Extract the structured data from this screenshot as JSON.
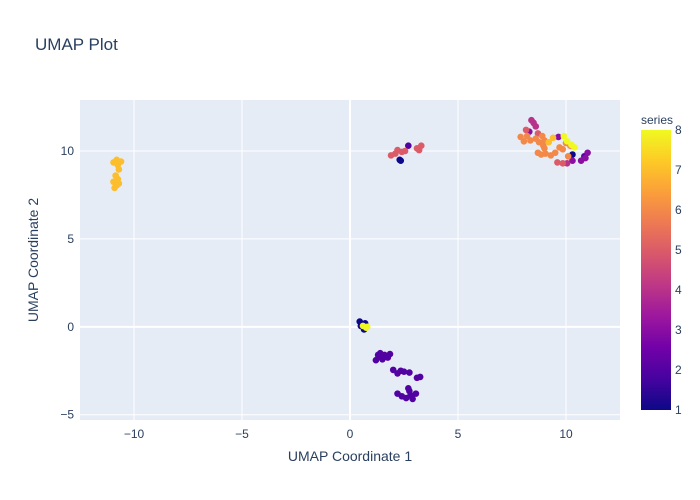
{
  "chart_data": {
    "type": "scatter",
    "title": "UMAP Plot",
    "xlabel": "UMAP Coordinate 1",
    "ylabel": "UMAP Coordinate 2",
    "xlim": [
      -12.5,
      12.5
    ],
    "ylim": [
      -5.3,
      12.9
    ],
    "x_ticks": [
      -10,
      -5,
      0,
      5,
      10
    ],
    "y_ticks": [
      -5,
      0,
      5,
      10
    ],
    "x_tick_labels": [
      "−10",
      "−5",
      "0",
      "5",
      "10"
    ],
    "y_tick_labels": [
      "−5",
      "0",
      "5",
      "10"
    ],
    "grid": true,
    "plot_background": "#e5ecf6",
    "colorbar": {
      "title": "series",
      "min": 1,
      "max": 8,
      "ticks": [
        1,
        2,
        3,
        4,
        5,
        6,
        7,
        8
      ],
      "tick_labels": [
        "1",
        "2",
        "3",
        "4",
        "5",
        "6",
        "7",
        "8"
      ],
      "colorscale": [
        "#0d0887",
        "#46039f",
        "#7201a8",
        "#9c179e",
        "#bd3786",
        "#d8576b",
        "#ed7953",
        "#fb9f3a",
        "#fdca26",
        "#f0f921"
      ]
    },
    "points": [
      {
        "x": 0.45,
        "y": 0.3,
        "c": 1
      },
      {
        "x": 0.5,
        "y": 0.05,
        "c": 1
      },
      {
        "x": 0.65,
        "y": -0.15,
        "c": 1
      },
      {
        "x": 0.7,
        "y": 0.2,
        "c": 1
      },
      {
        "x": 2.3,
        "y": 9.5,
        "c": 1
      },
      {
        "x": 2.35,
        "y": 9.45,
        "c": 1
      },
      {
        "x": 10.3,
        "y": 9.8,
        "c": 1
      },
      {
        "x": 1.3,
        "y": -1.6,
        "c": 2
      },
      {
        "x": 1.4,
        "y": -1.5,
        "c": 2
      },
      {
        "x": 1.2,
        "y": -1.9,
        "c": 2
      },
      {
        "x": 1.5,
        "y": -1.85,
        "c": 2
      },
      {
        "x": 1.6,
        "y": -1.6,
        "c": 2
      },
      {
        "x": 1.75,
        "y": -1.75,
        "c": 2
      },
      {
        "x": 1.85,
        "y": -1.55,
        "c": 2
      },
      {
        "x": 1.45,
        "y": -1.75,
        "c": 2
      },
      {
        "x": 2.0,
        "y": -2.45,
        "c": 2
      },
      {
        "x": 2.2,
        "y": -2.65,
        "c": 2
      },
      {
        "x": 2.35,
        "y": -2.5,
        "c": 2
      },
      {
        "x": 2.5,
        "y": -2.55,
        "c": 2
      },
      {
        "x": 2.75,
        "y": -2.6,
        "c": 2
      },
      {
        "x": 3.1,
        "y": -2.9,
        "c": 2
      },
      {
        "x": 3.25,
        "y": -2.85,
        "c": 2
      },
      {
        "x": 2.2,
        "y": -3.8,
        "c": 2
      },
      {
        "x": 2.4,
        "y": -3.95,
        "c": 2
      },
      {
        "x": 2.6,
        "y": -4.05,
        "c": 2
      },
      {
        "x": 2.8,
        "y": -3.9,
        "c": 2
      },
      {
        "x": 2.9,
        "y": -4.1,
        "c": 2
      },
      {
        "x": 3.05,
        "y": -3.8,
        "c": 2
      },
      {
        "x": 2.7,
        "y": -3.5,
        "c": 2
      },
      {
        "x": 2.75,
        "y": -3.65,
        "c": 2
      },
      {
        "x": 2.7,
        "y": 10.3,
        "c": 2
      },
      {
        "x": 10.85,
        "y": 9.7,
        "c": 2
      },
      {
        "x": 10.7,
        "y": 9.45,
        "c": 3
      },
      {
        "x": 11.0,
        "y": 9.9,
        "c": 3
      },
      {
        "x": 10.9,
        "y": 9.6,
        "c": 3
      },
      {
        "x": 10.3,
        "y": 9.45,
        "c": 3
      },
      {
        "x": 8.3,
        "y": 11.1,
        "c": 3
      },
      {
        "x": 9.65,
        "y": 10.8,
        "c": 3
      },
      {
        "x": 8.5,
        "y": 11.6,
        "c": 4
      },
      {
        "x": 8.4,
        "y": 11.75,
        "c": 4
      },
      {
        "x": 8.6,
        "y": 11.4,
        "c": 4
      },
      {
        "x": 10.05,
        "y": 9.3,
        "c": 4
      },
      {
        "x": 1.9,
        "y": 9.75,
        "c": 5
      },
      {
        "x": 2.1,
        "y": 9.85,
        "c": 5
      },
      {
        "x": 2.2,
        "y": 10.05,
        "c": 5
      },
      {
        "x": 2.4,
        "y": 9.95,
        "c": 5
      },
      {
        "x": 2.55,
        "y": 10.0,
        "c": 5
      },
      {
        "x": 3.1,
        "y": 10.15,
        "c": 5
      },
      {
        "x": 3.3,
        "y": 10.3,
        "c": 5
      },
      {
        "x": 3.2,
        "y": 10.05,
        "c": 5
      },
      {
        "x": 8.15,
        "y": 11.2,
        "c": 5
      },
      {
        "x": 8.7,
        "y": 11.0,
        "c": 5
      },
      {
        "x": 9.85,
        "y": 9.3,
        "c": 5
      },
      {
        "x": 9.6,
        "y": 9.35,
        "c": 5
      },
      {
        "x": 7.9,
        "y": 10.8,
        "c": 6
      },
      {
        "x": 8.05,
        "y": 10.55,
        "c": 6
      },
      {
        "x": 8.2,
        "y": 10.85,
        "c": 6
      },
      {
        "x": 8.35,
        "y": 10.6,
        "c": 6
      },
      {
        "x": 8.6,
        "y": 10.7,
        "c": 6
      },
      {
        "x": 8.75,
        "y": 10.5,
        "c": 6
      },
      {
        "x": 8.9,
        "y": 10.85,
        "c": 6
      },
      {
        "x": 9.0,
        "y": 10.6,
        "c": 6
      },
      {
        "x": 8.95,
        "y": 10.3,
        "c": 6
      },
      {
        "x": 9.05,
        "y": 9.85,
        "c": 6
      },
      {
        "x": 8.7,
        "y": 9.9,
        "c": 6
      },
      {
        "x": 8.85,
        "y": 9.8,
        "c": 6
      },
      {
        "x": 9.3,
        "y": 9.75,
        "c": 6
      },
      {
        "x": 9.5,
        "y": 9.9,
        "c": 6
      },
      {
        "x": 9.7,
        "y": 10.2,
        "c": 6
      },
      {
        "x": 9.85,
        "y": 10.1,
        "c": 6
      },
      {
        "x": 10.0,
        "y": 10.45,
        "c": 6
      },
      {
        "x": 10.2,
        "y": 10.3,
        "c": 6
      },
      {
        "x": 10.1,
        "y": 9.7,
        "c": 6
      },
      {
        "x": 9.0,
        "y": 10.15,
        "c": 6
      },
      {
        "x": -10.95,
        "y": 9.35,
        "c": 7
      },
      {
        "x": -10.8,
        "y": 9.5,
        "c": 7
      },
      {
        "x": -10.6,
        "y": 9.4,
        "c": 7
      },
      {
        "x": -10.75,
        "y": 9.2,
        "c": 7
      },
      {
        "x": -10.7,
        "y": 8.95,
        "c": 7
      },
      {
        "x": -10.85,
        "y": 8.6,
        "c": 7
      },
      {
        "x": -10.75,
        "y": 8.4,
        "c": 7
      },
      {
        "x": -10.95,
        "y": 8.25,
        "c": 7
      },
      {
        "x": -10.8,
        "y": 8.05,
        "c": 7
      },
      {
        "x": -10.9,
        "y": 7.9,
        "c": 7
      },
      {
        "x": -10.7,
        "y": 8.15,
        "c": 7
      },
      {
        "x": 9.2,
        "y": 10.5,
        "c": 7
      },
      {
        "x": 9.4,
        "y": 10.75,
        "c": 7
      },
      {
        "x": 0.6,
        "y": 0.05,
        "c": 8
      },
      {
        "x": 0.75,
        "y": -0.05,
        "c": 8
      },
      {
        "x": 0.8,
        "y": 0.0,
        "c": 8
      },
      {
        "x": 9.9,
        "y": 10.85,
        "c": 8
      },
      {
        "x": 10.05,
        "y": 10.55,
        "c": 8
      },
      {
        "x": 10.25,
        "y": 10.35,
        "c": 8
      },
      {
        "x": 10.4,
        "y": 10.2,
        "c": 8
      }
    ]
  }
}
